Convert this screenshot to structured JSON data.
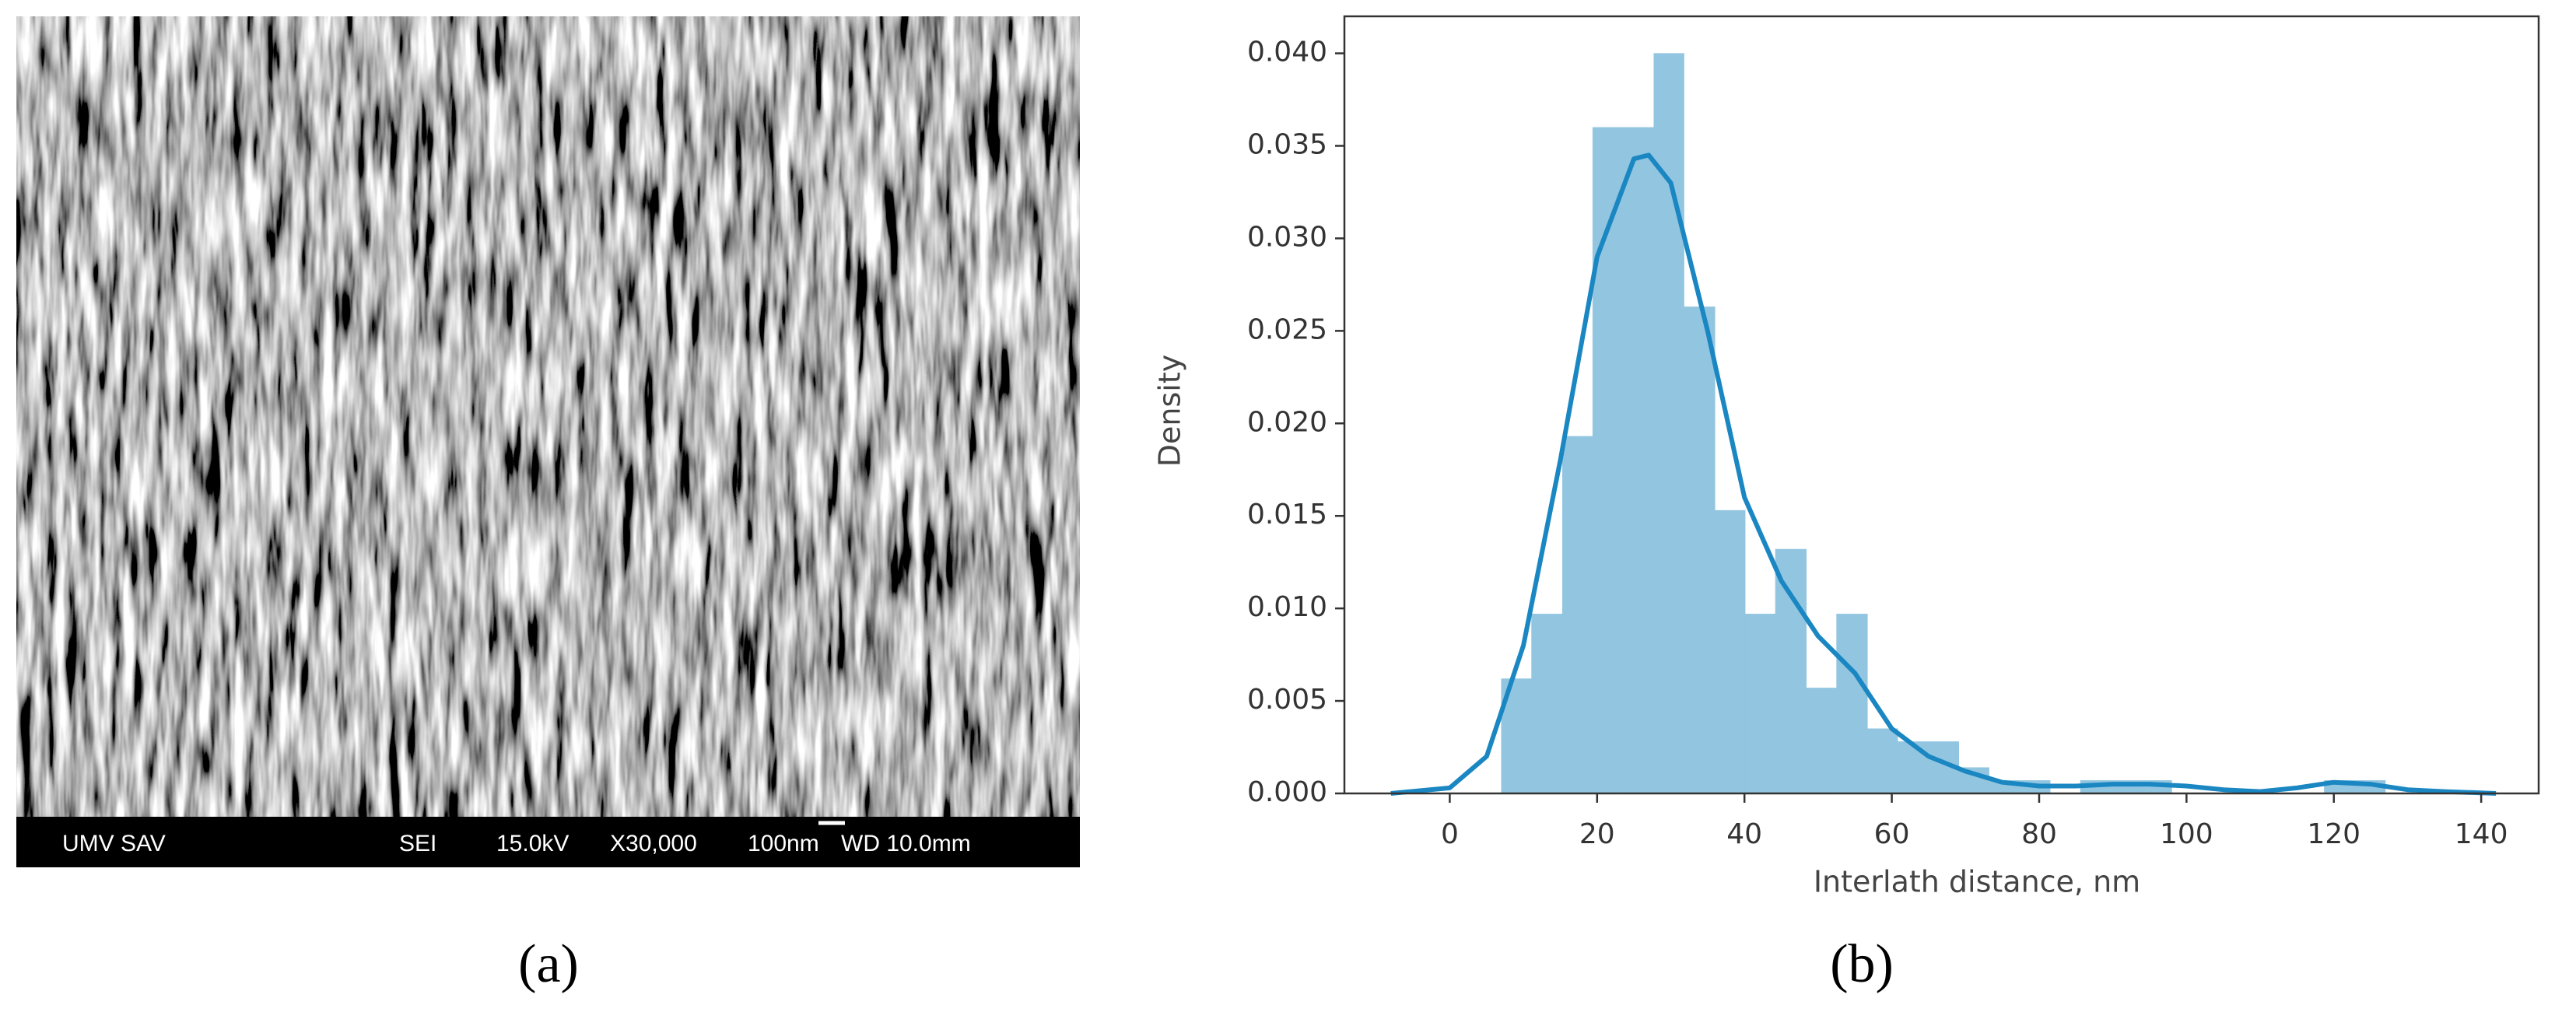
{
  "chart_data": {
    "type": "histogram",
    "xlabel": "Interlath distance, nm",
    "ylabel": "Density",
    "bins": [
      7.0,
      11.1,
      15.3,
      19.4,
      23.6,
      27.7,
      31.8,
      36.0,
      40.1,
      44.2,
      48.4,
      52.5,
      56.7,
      60.8,
      64.9,
      69.1,
      73.2,
      77.3,
      81.5,
      85.6,
      89.8,
      93.9,
      98.0,
      102.2,
      106.3,
      110.4,
      114.6,
      118.7,
      122.9,
      127.0
    ],
    "values": [
      0.0062,
      0.0097,
      0.0193,
      0.036,
      0.036,
      0.04,
      0.0263,
      0.0153,
      0.0097,
      0.0132,
      0.0057,
      0.0097,
      0.0035,
      0.0028,
      0.0028,
      0.0014,
      0.0007,
      0.0007,
      0,
      0.0007,
      0.0007,
      0.0007,
      0,
      0,
      0,
      0,
      0,
      0.0007,
      0.0007
    ],
    "color": "#92c5e0",
    "kde": {
      "color": "#1a87c2",
      "x": [
        -8,
        0,
        5,
        10,
        15,
        20,
        25,
        27,
        30,
        35,
        40,
        45,
        50,
        55,
        60,
        65,
        70,
        75,
        80,
        85,
        90,
        95,
        100,
        105,
        110,
        115,
        120,
        125,
        130,
        135,
        142
      ],
      "values": [
        0,
        0.0003,
        0.002,
        0.008,
        0.018,
        0.029,
        0.0343,
        0.0345,
        0.033,
        0.025,
        0.016,
        0.0115,
        0.0085,
        0.0065,
        0.0035,
        0.002,
        0.0012,
        0.0006,
        0.0004,
        0.0004,
        0.0005,
        0.0005,
        0.0004,
        0.0002,
        0.0001,
        0.0003,
        0.0006,
        0.0005,
        0.0002,
        0.0001,
        0
      ]
    },
    "xlim": [
      -14.3,
      147.8
    ],
    "ylim": [
      0,
      0.042
    ],
    "xticks": [
      0,
      20,
      40,
      60,
      80,
      100,
      120,
      140
    ],
    "yticks": [
      {
        "value": 0,
        "label": "0.000"
      },
      {
        "value": 0.005,
        "label": "0.005"
      },
      {
        "value": 0.01,
        "label": "0.010"
      },
      {
        "value": 0.015,
        "label": "0.015"
      },
      {
        "value": 0.02,
        "label": "0.020"
      },
      {
        "value": 0.025,
        "label": "0.025"
      },
      {
        "value": 0.03,
        "label": "0.030"
      },
      {
        "value": 0.035,
        "label": "0.035"
      },
      {
        "value": 0.04,
        "label": "0.040"
      }
    ]
  },
  "sem_image": {
    "info_bar": [
      "UMV SAV",
      "SEI",
      "15.0kV",
      "X30,000",
      "100nm",
      "WD 10.0mm"
    ]
  },
  "panel_labels": [
    "(a)",
    "(b)"
  ]
}
